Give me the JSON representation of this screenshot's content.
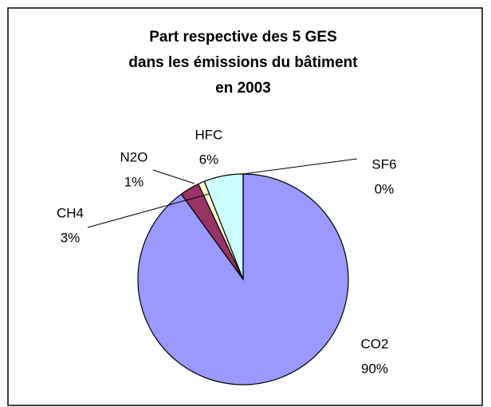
{
  "chart_data": {
    "type": "pie",
    "title": [
      "Part respective des 5 GES",
      "dans les émissions du bâtiment",
      "en 2003"
    ],
    "categories": [
      "CO2",
      "CH4",
      "N2O",
      "HFC",
      "SF6"
    ],
    "values": [
      90,
      3,
      1,
      6,
      0
    ],
    "value_labels": [
      "90%",
      "3%",
      "1%",
      "6%",
      "0%"
    ],
    "colors": [
      "#9999ff",
      "#993366",
      "#ffffcc",
      "#ccffff",
      "#660066"
    ]
  }
}
